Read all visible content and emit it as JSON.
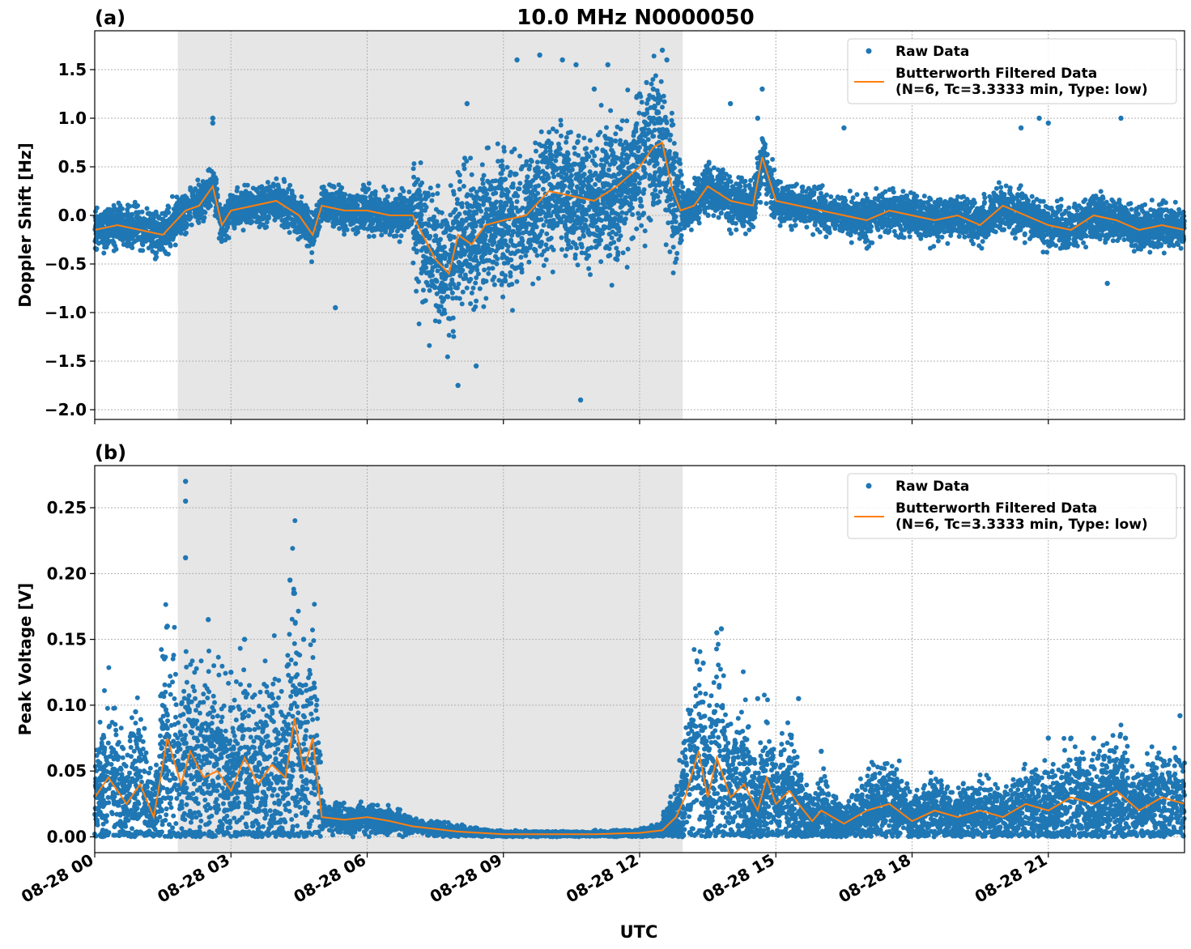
{
  "figure": {
    "title": "10.0 MHz N0000050",
    "xlabel": "UTC",
    "xticks": [
      "08-28 00",
      "08-28 03",
      "08-28 06",
      "08-28 09",
      "08-28 12",
      "08-28 15",
      "08-28 18",
      "08-28 21"
    ],
    "xlim_hours": [
      0,
      24
    ],
    "shaded_interval_hours": [
      1.83,
      12.95
    ],
    "legend": {
      "raw": "Raw Data",
      "filtered_line1": "Butterworth Filtered Data",
      "filtered_line2": "(N=6, Tc=3.3333 min, Type: low)"
    },
    "colors": {
      "raw": "#1f77b4",
      "filtered": "#ff7f0e",
      "shade": "#e6e6e6",
      "grid": "#b0b0b0"
    }
  },
  "chart_data": [
    {
      "type": "scatter",
      "panel_label": "(a)",
      "title": "10.0 MHz N0000050",
      "xlabel": "",
      "ylabel": "Doppler Shift [Hz]",
      "ylim": [
        -2.1,
        1.9
      ],
      "yticks": [
        -2.0,
        -1.5,
        -1.0,
        -0.5,
        0.0,
        0.5,
        1.0,
        1.5
      ],
      "ytick_labels": [
        "−2.0",
        "−1.5",
        "−1.0",
        "−0.5",
        "0.0",
        "0.5",
        "1.0",
        "1.5"
      ],
      "grid": true,
      "legend_position": "top-right",
      "series": [
        {
          "name": "Butterworth Filtered Data",
          "kind": "line",
          "x": [
            0,
            0.5,
            1,
            1.5,
            2,
            2.3,
            2.6,
            2.8,
            3,
            3.5,
            4,
            4.5,
            4.8,
            5,
            5.5,
            6,
            6.5,
            7,
            7.5,
            7.8,
            8,
            8.3,
            8.6,
            9,
            9.5,
            10,
            10.5,
            11,
            11.5,
            12,
            12.3,
            12.5,
            12.7,
            12.9,
            13.2,
            13.5,
            14,
            14.5,
            14.7,
            15,
            15.5,
            16,
            16.5,
            17,
            17.5,
            18,
            18.5,
            19,
            19.5,
            20,
            20.5,
            21,
            21.5,
            22,
            22.5,
            23,
            23.5,
            24
          ],
          "y": [
            -0.15,
            -0.1,
            -0.15,
            -0.2,
            0.05,
            0.1,
            0.3,
            -0.1,
            0.05,
            0.1,
            0.15,
            0.0,
            -0.2,
            0.1,
            0.05,
            0.05,
            0.0,
            0.0,
            -0.45,
            -0.6,
            -0.2,
            -0.3,
            -0.1,
            -0.05,
            0.0,
            0.25,
            0.2,
            0.15,
            0.3,
            0.5,
            0.7,
            0.75,
            0.3,
            0.05,
            0.1,
            0.3,
            0.15,
            0.1,
            0.6,
            0.15,
            0.1,
            0.05,
            0.0,
            -0.05,
            0.05,
            0.0,
            -0.05,
            0.0,
            -0.1,
            0.1,
            0.0,
            -0.1,
            -0.15,
            0.0,
            -0.05,
            -0.15,
            -0.1,
            -0.15
          ]
        },
        {
          "name": "Raw Data",
          "kind": "scatter",
          "x": [
            2.6,
            2.6,
            5.3,
            8.0,
            8.2,
            9.3,
            9.8,
            10.3,
            10.7,
            10.6,
            11.0,
            11.3,
            12.0,
            12.3,
            12.5,
            12.6,
            14.0,
            14.7,
            14.6,
            16.5,
            20.4,
            20.8,
            21.0,
            22.6,
            22.3,
            8.4
          ],
          "y": [
            1.0,
            0.95,
            -0.95,
            -1.75,
            1.15,
            1.6,
            1.65,
            1.6,
            -1.9,
            1.55,
            1.3,
            1.55,
            1.25,
            1.3,
            1.7,
            1.6,
            1.15,
            1.3,
            1.0,
            0.9,
            0.9,
            1.0,
            0.95,
            1.0,
            -0.7,
            -1.55
          ]
        }
      ]
    },
    {
      "type": "scatter",
      "panel_label": "(b)",
      "xlabel": "UTC",
      "ylabel": "Peak Voltage [V]",
      "ylim": [
        -0.012,
        0.282
      ],
      "yticks": [
        0.0,
        0.05,
        0.1,
        0.15,
        0.2,
        0.25
      ],
      "ytick_labels": [
        "0.00",
        "0.05",
        "0.10",
        "0.15",
        "0.20",
        "0.25"
      ],
      "grid": true,
      "legend_position": "top-right",
      "series": [
        {
          "name": "Butterworth Filtered Data",
          "kind": "line",
          "x": [
            0,
            0.3,
            0.7,
            1.0,
            1.3,
            1.6,
            1.9,
            2.1,
            2.4,
            2.7,
            3.0,
            3.3,
            3.6,
            3.9,
            4.2,
            4.4,
            4.6,
            4.8,
            5.0,
            5.5,
            6.0,
            6.5,
            7.0,
            7.5,
            8.0,
            8.5,
            9.0,
            10.0,
            11.0,
            12.0,
            12.5,
            12.8,
            13.0,
            13.3,
            13.5,
            13.7,
            14.0,
            14.3,
            14.6,
            14.8,
            15.0,
            15.3,
            15.5,
            15.8,
            16.0,
            16.5,
            17.0,
            17.5,
            18.0,
            18.5,
            19.0,
            19.5,
            20.0,
            20.5,
            21.0,
            21.5,
            22.0,
            22.5,
            23.0,
            23.5,
            24.0
          ],
          "y": [
            0.03,
            0.045,
            0.025,
            0.04,
            0.015,
            0.075,
            0.04,
            0.065,
            0.045,
            0.05,
            0.035,
            0.06,
            0.04,
            0.055,
            0.045,
            0.09,
            0.05,
            0.075,
            0.015,
            0.013,
            0.015,
            0.012,
            0.008,
            0.006,
            0.004,
            0.003,
            0.002,
            0.002,
            0.002,
            0.003,
            0.005,
            0.015,
            0.03,
            0.065,
            0.03,
            0.06,
            0.03,
            0.04,
            0.02,
            0.045,
            0.025,
            0.035,
            0.025,
            0.012,
            0.02,
            0.01,
            0.02,
            0.025,
            0.012,
            0.02,
            0.015,
            0.02,
            0.015,
            0.025,
            0.02,
            0.03,
            0.025,
            0.035,
            0.02,
            0.03,
            0.025
          ]
        },
        {
          "name": "Raw Data",
          "kind": "scatter",
          "x": [
            0.9,
            1.5,
            1.6,
            2.0,
            2.0,
            2.0,
            2.5,
            3.0,
            3.3,
            4.3,
            4.4,
            4.6,
            13.4,
            13.8,
            13.7,
            14.6,
            15.5,
            16.0,
            21.0,
            21.5,
            22.0,
            22.7,
            23.9
          ],
          "y": [
            0.095,
            0.137,
            0.16,
            0.27,
            0.255,
            0.212,
            0.165,
            0.125,
            0.15,
            0.195,
            0.185,
            0.15,
            0.132,
            0.158,
            0.155,
            0.105,
            0.105,
            0.065,
            0.075,
            0.075,
            0.075,
            0.075,
            0.092
          ]
        }
      ]
    }
  ]
}
